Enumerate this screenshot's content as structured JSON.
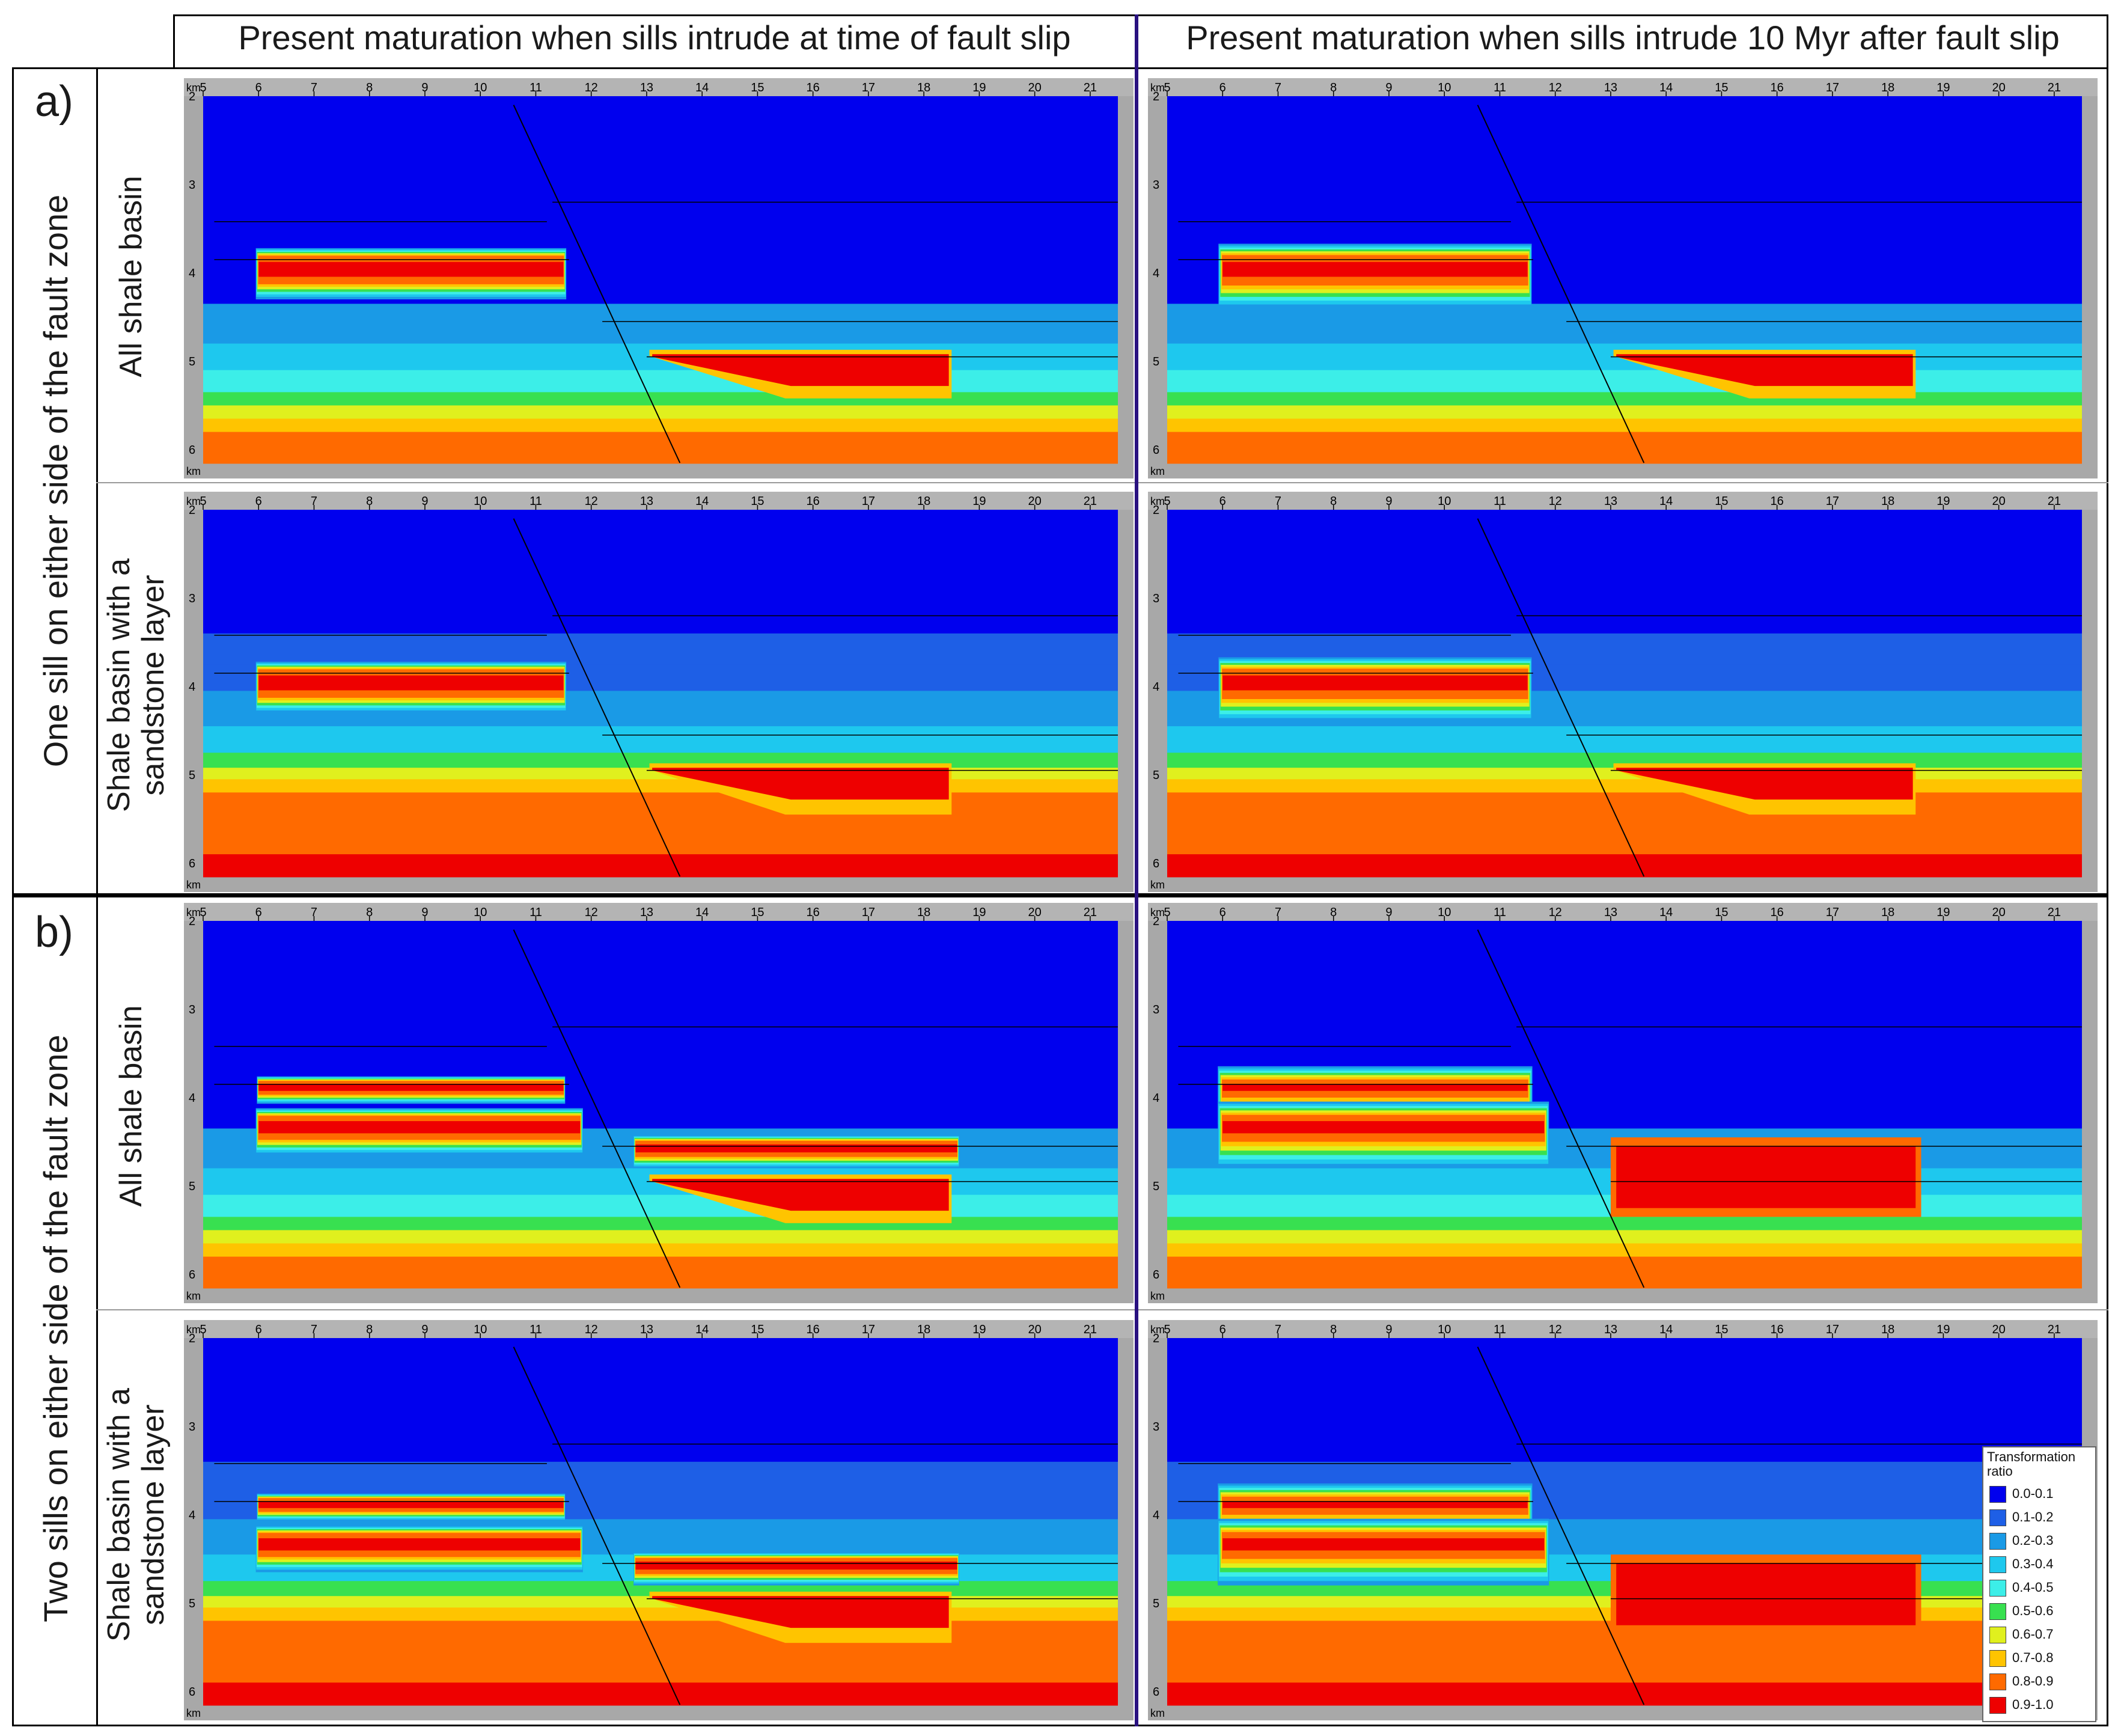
{
  "columns": [
    {
      "title": "Present maturation when sills intrude at time of fault slip"
    },
    {
      "title": "Present maturation when sills intrude 10 Myr after fault slip"
    }
  ],
  "sections": [
    {
      "letter": "a)",
      "label": "One sill on either side of the fault zone"
    },
    {
      "letter": "b)",
      "label": "Two sills on either side of the fault zone"
    }
  ],
  "row_labels": [
    {
      "text": "All shale basin"
    },
    {
      "line1": "Shale basin with a",
      "line2": "sandstone layer"
    },
    {
      "text": "All shale basin"
    },
    {
      "line1": "Shale basin with a",
      "line2": "sandstone layer"
    }
  ],
  "axes": {
    "x_unit": "km",
    "y_unit": "km",
    "x_ticks": [
      5,
      6,
      7,
      8,
      9,
      10,
      11,
      12,
      13,
      14,
      15,
      16,
      17,
      18,
      19,
      20,
      21
    ],
    "y_ticks": [
      2,
      3,
      4,
      5,
      6
    ]
  },
  "legend": {
    "title_line1": "Transformation",
    "title_line2": "ratio",
    "items": [
      {
        "label": "0.0-0.1",
        "color": "#0000ee"
      },
      {
        "label": "0.1-0.2",
        "color": "#1e5fe6"
      },
      {
        "label": "0.2-0.3",
        "color": "#1a9ae6"
      },
      {
        "label": "0.3-0.4",
        "color": "#1ec8ee"
      },
      {
        "label": "0.4-0.5",
        "color": "#3ceee8"
      },
      {
        "label": "0.5-0.6",
        "color": "#38e050"
      },
      {
        "label": "0.6-0.7",
        "color": "#e0f01e"
      },
      {
        "label": "0.7-0.8",
        "color": "#ffc400"
      },
      {
        "label": "0.8-0.9",
        "color": "#ff6a00"
      },
      {
        "label": "0.9-1.0",
        "color": "#ee0000"
      }
    ]
  }
}
